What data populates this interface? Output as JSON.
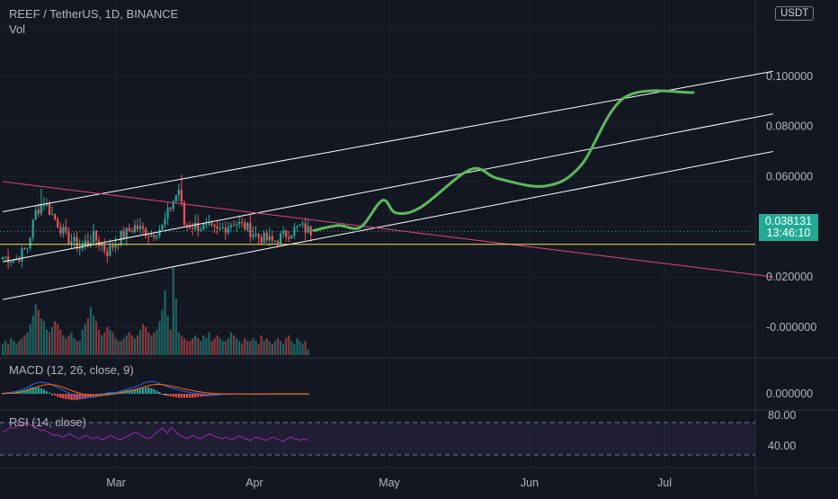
{
  "header": {
    "symbol_line": "REEF / TetherUS, 1D, BINANCE",
    "volume_label": "Vol",
    "currency_button": "USDT"
  },
  "indicators": {
    "macd_label": "MACD (12, 26, close, 9)",
    "rsi_label": "RSI (14, close)"
  },
  "last_price": {
    "value": "0.038131",
    "countdown": "13:46:10",
    "color": "#22ab94"
  },
  "colors": {
    "background": "#131722",
    "up": "#26a69a",
    "down": "#ef5350",
    "channel": "#ffffff",
    "trend": "#e0457b",
    "support": "#f2e55b",
    "projection": "#5cb85c",
    "macd": "#2962ff",
    "signal": "#ff6d00",
    "rsi": "#9c27b0"
  },
  "chart_data": [
    {
      "type": "candlestick",
      "panel": "price",
      "x_axis": {
        "ticks": [
          "Mar",
          "Apr",
          "May",
          "Jun",
          "Jul"
        ]
      },
      "y_axis": {
        "ticks": [
          "0.100000",
          "0.080000",
          "0.060000",
          "0.020000",
          "-0.000000"
        ],
        "range": [
          -0.005,
          0.122
        ]
      },
      "last_value": 0.038131,
      "lines": [
        {
          "kind": "channel-upper",
          "points": [
            [
              0,
              0.046
            ],
            [
              280,
              0.102
            ]
          ]
        },
        {
          "kind": "channel-middle",
          "points": [
            [
              0,
              0.026
            ],
            [
              280,
              0.085
            ]
          ]
        },
        {
          "kind": "channel-lower",
          "points": [
            [
              0,
              0.011
            ],
            [
              280,
              0.07
            ]
          ]
        },
        {
          "kind": "descending-trendline",
          "points": [
            [
              0,
              0.058
            ],
            [
              280,
              0.02
            ]
          ]
        },
        {
          "kind": "horizontal-support",
          "value": 0.033
        },
        {
          "kind": "price-projection",
          "points": [
            [
              113,
              0.0385
            ],
            [
              122,
              0.0405
            ],
            [
              130,
              0.0398
            ],
            [
              138,
              0.0505
            ],
            [
              143,
              0.0455
            ],
            [
              152,
              0.0478
            ],
            [
              170,
              0.0628
            ],
            [
              180,
              0.0592
            ],
            [
              197,
              0.0562
            ],
            [
              210,
              0.0642
            ],
            [
              226,
              0.0915
            ],
            [
              251,
              0.0935
            ]
          ]
        }
      ]
    },
    {
      "type": "bar",
      "panel": "volume",
      "series": [
        {
          "values": [
            4,
            5,
            4,
            6,
            5,
            4,
            5,
            6,
            7,
            8,
            11,
            14,
            18,
            16,
            13,
            12,
            9,
            8,
            10,
            12,
            11,
            9,
            7,
            6,
            7,
            8,
            6,
            5,
            5,
            9,
            11,
            13,
            17,
            14,
            12,
            9,
            7,
            8,
            10,
            9,
            8,
            6,
            5,
            5,
            6,
            7,
            8,
            7,
            6,
            7,
            9,
            11,
            10,
            8,
            7,
            8,
            9,
            12,
            16,
            23,
            14,
            9,
            31,
            20,
            8,
            7,
            6,
            5,
            5,
            6,
            7,
            6,
            5,
            7,
            6,
            8,
            5,
            6,
            7,
            6,
            5,
            5,
            6,
            8,
            7,
            6,
            5,
            4,
            6,
            5,
            5,
            6,
            5,
            4,
            7,
            5,
            6,
            5,
            4,
            5,
            6,
            5,
            4,
            6,
            7,
            5,
            4,
            6,
            5,
            4,
            5,
            2
          ]
        }
      ]
    },
    {
      "type": "line",
      "panel": "macd",
      "y_axis": {
        "ticks": [
          "0.000000"
        ]
      },
      "series": [
        {
          "values": [
            0.2,
            0.3,
            0.4,
            0.5,
            0.7,
            0.9,
            1.2,
            1.5,
            1.9,
            2.4,
            3.0,
            3.5,
            3.9,
            4.2,
            4.3,
            4.2,
            4.0,
            3.7,
            3.3,
            2.8,
            2.3,
            1.8,
            1.3,
            0.8,
            0.3,
            -0.2,
            -0.6,
            -0.9,
            -1.1,
            -1.3,
            -1.4,
            -1.4,
            -1.3,
            -1.2,
            -1.0,
            -0.8,
            -0.6,
            -0.4,
            -0.2,
            0.0,
            0.2,
            0.4,
            0.7,
            1.0,
            1.3,
            1.6,
            1.9,
            2.2,
            2.5,
            2.9,
            3.3,
            3.8,
            4.2,
            4.5,
            4.6,
            4.5,
            4.2,
            3.8,
            3.4,
            3.0,
            2.6,
            2.3,
            2.0,
            1.7,
            1.4,
            1.1,
            0.9,
            0.7,
            0.5,
            0.3,
            0.2,
            0.1,
            0.0,
            -0.1,
            -0.2,
            -0.2,
            -0.3,
            -0.3,
            -0.3,
            -0.3,
            -0.2,
            -0.2,
            -0.1,
            -0.1,
            0.0,
            0.0,
            0.0,
            0.0,
            0.0,
            -0.1,
            -0.1,
            -0.1,
            -0.1,
            -0.1,
            -0.1,
            0.0,
            0.0,
            0.0,
            0.0,
            0.0,
            0.0,
            0.0,
            0.0,
            0.0,
            0.0,
            0.0,
            0.0,
            0.0,
            0.0,
            0.0,
            0.0,
            0.0
          ]
        },
        {
          "values": [
            0.1,
            0.1,
            0.2,
            0.2,
            0.3,
            0.4,
            0.6,
            0.8,
            1.0,
            1.3,
            1.6,
            2.0,
            2.4,
            2.7,
            3.0,
            3.2,
            3.4,
            3.4,
            3.4,
            3.2,
            3.0,
            2.7,
            2.4,
            2.0,
            1.6,
            1.2,
            0.8,
            0.5,
            0.2,
            -0.1,
            -0.3,
            -0.5,
            -0.6,
            -0.7,
            -0.7,
            -0.7,
            -0.6,
            -0.5,
            -0.4,
            -0.3,
            -0.2,
            0.0,
            0.2,
            0.4,
            0.6,
            0.8,
            1.0,
            1.3,
            1.5,
            1.8,
            2.1,
            2.4,
            2.7,
            3.0,
            3.3,
            3.4,
            3.5,
            3.5,
            3.4,
            3.3,
            3.1,
            2.9,
            2.7,
            2.5,
            2.3,
            2.0,
            1.8,
            1.6,
            1.4,
            1.2,
            1.0,
            0.8,
            0.7,
            0.5,
            0.4,
            0.3,
            0.2,
            0.1,
            0.1,
            0.0,
            0.0,
            0.0,
            -0.1,
            -0.1,
            -0.1,
            -0.1,
            -0.1,
            -0.1,
            -0.1,
            -0.1,
            -0.1,
            -0.1,
            -0.1,
            -0.1,
            -0.1,
            -0.1,
            -0.1,
            0.0,
            0.0,
            0.0,
            0.0,
            0.0,
            0.0,
            0.0,
            0.0,
            0.0,
            0.0,
            0.0,
            0.0,
            0.0,
            0.0,
            0.0
          ]
        }
      ]
    },
    {
      "type": "line",
      "panel": "rsi",
      "y_axis": {
        "ticks": [
          "80.00",
          "40.00"
        ],
        "range": [
          10,
          95
        ],
        "bands": [
          70,
          30
        ]
      },
      "series": [
        {
          "values": [
            58,
            60,
            62,
            64,
            63,
            65,
            67,
            68,
            70,
            69,
            67,
            66,
            64,
            62,
            60,
            61,
            59,
            57,
            55,
            54,
            55,
            53,
            52,
            54,
            56,
            55,
            53,
            51,
            50,
            52,
            54,
            53,
            51,
            50,
            52,
            51,
            49,
            50,
            52,
            54,
            53,
            51,
            50,
            49,
            51,
            53,
            54,
            56,
            58,
            57,
            55,
            53,
            51,
            50,
            52,
            55,
            58,
            61,
            63,
            60,
            57,
            64,
            62,
            58,
            55,
            53,
            52,
            50,
            52,
            54,
            53,
            51,
            50,
            52,
            54,
            56,
            55,
            53,
            52,
            51,
            50,
            52,
            51,
            49,
            50,
            52,
            53,
            52,
            50,
            49,
            48,
            50,
            52,
            51,
            50,
            49,
            48,
            50,
            52,
            51,
            49,
            48,
            47,
            49,
            51,
            52,
            50,
            49,
            48,
            50,
            49,
            48
          ]
        }
      ]
    }
  ]
}
